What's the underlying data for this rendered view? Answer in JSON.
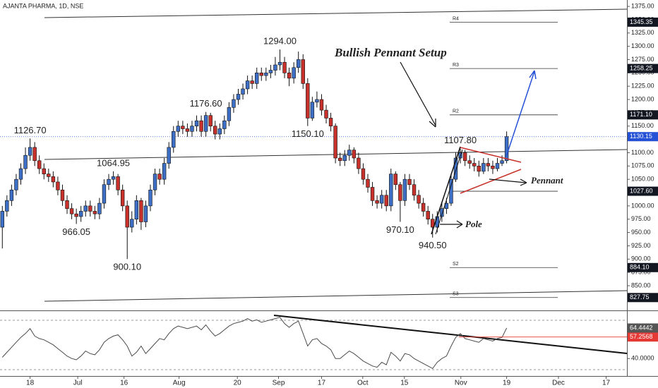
{
  "chart_data": {
    "type": "candlestick",
    "title": "AJANTA PHARMA, 1D, NSE",
    "open": [
      960,
      990,
      1010,
      1030,
      1050,
      1070,
      1095,
      1110,
      1085,
      1070,
      1060,
      1055,
      1045,
      1030,
      1010,
      995,
      985,
      980,
      990,
      1000,
      990,
      985,
      1005,
      1040,
      1050,
      1055,
      1030,
      1000,
      960,
      975,
      1010,
      970,
      1000,
      1030,
      1060,
      1050,
      1080,
      1110,
      1140,
      1150,
      1145,
      1140,
      1150,
      1160,
      1140,
      1170,
      1150,
      1135,
      1145,
      1160,
      1185,
      1200,
      1210,
      1220,
      1235,
      1230,
      1250,
      1245,
      1250,
      1255,
      1265,
      1270,
      1250,
      1240,
      1260,
      1275,
      1230,
      1165,
      1195,
      1200,
      1180,
      1165,
      1150,
      1090,
      1085,
      1095,
      1105,
      1090,
      1070,
      1050,
      1035,
      1010,
      1005,
      1020,
      1000,
      1060,
      1040,
      1010,
      1050,
      1040,
      1020,
      1005,
      990,
      975,
      960,
      980,
      995,
      1005,
      1050,
      1090,
      1100,
      1085,
      1080,
      1075,
      1065,
      1080,
      1075,
      1070,
      1080,
      1085
    ],
    "high": [
      1000,
      1020,
      1040,
      1060,
      1080,
      1110,
      1126.7,
      1120,
      1095,
      1080,
      1070,
      1065,
      1055,
      1040,
      1020,
      1005,
      995,
      1000,
      1010,
      1010,
      1000,
      1015,
      1050,
      1060,
      1064.95,
      1060,
      1040,
      1010,
      990,
      1020,
      1015,
      1010,
      1040,
      1070,
      1070,
      1090,
      1120,
      1150,
      1160,
      1160,
      1155,
      1160,
      1170,
      1170,
      1176.6,
      1175,
      1160,
      1155,
      1170,
      1195,
      1210,
      1220,
      1230,
      1245,
      1245,
      1260,
      1260,
      1260,
      1265,
      1280,
      1294,
      1280,
      1260,
      1270,
      1290,
      1285,
      1240,
      1205,
      1215,
      1210,
      1190,
      1175,
      1155,
      1100,
      1105,
      1115,
      1110,
      1100,
      1080,
      1060,
      1045,
      1020,
      1030,
      1030,
      1070,
      1065,
      1045,
      1060,
      1060,
      1050,
      1030,
      1015,
      1000,
      985,
      990,
      1005,
      1015,
      1060,
      1100,
      1107.8,
      1105,
      1095,
      1090,
      1085,
      1090,
      1090,
      1085,
      1090,
      1095,
      1140
    ],
    "low": [
      920,
      980,
      1000,
      1020,
      1040,
      1060,
      1085,
      1075,
      1060,
      1050,
      1045,
      1035,
      1020,
      1000,
      985,
      975,
      966.05,
      970,
      980,
      980,
      975,
      975,
      995,
      1030,
      1040,
      1020,
      990,
      900.1,
      950,
      965,
      955,
      960,
      990,
      1020,
      1040,
      1040,
      1070,
      1100,
      1130,
      1135,
      1130,
      1130,
      1140,
      1130,
      1130,
      1140,
      1125,
      1125,
      1135,
      1150,
      1175,
      1190,
      1200,
      1210,
      1220,
      1220,
      1235,
      1235,
      1240,
      1245,
      1255,
      1240,
      1225,
      1230,
      1250,
      1220,
      1150.1,
      1160,
      1185,
      1170,
      1155,
      1140,
      1080,
      1075,
      1075,
      1085,
      1080,
      1060,
      1040,
      1025,
      1000,
      995,
      995,
      990,
      990,
      1030,
      970.1,
      1000,
      1030,
      1010,
      995,
      980,
      965,
      940.5,
      950,
      970,
      985,
      1000,
      1045,
      1080,
      1075,
      1070,
      1065,
      1055,
      1060,
      1065,
      1060,
      1065,
      1075,
      1080
    ],
    "close": [
      990,
      1010,
      1030,
      1050,
      1070,
      1095,
      1110,
      1085,
      1070,
      1060,
      1055,
      1045,
      1030,
      1010,
      995,
      985,
      980,
      990,
      1000,
      990,
      985,
      1005,
      1040,
      1050,
      1055,
      1030,
      1000,
      960,
      975,
      1010,
      970,
      1000,
      1030,
      1060,
      1050,
      1080,
      1110,
      1140,
      1150,
      1145,
      1140,
      1150,
      1160,
      1140,
      1170,
      1150,
      1135,
      1145,
      1160,
      1185,
      1200,
      1210,
      1220,
      1235,
      1230,
      1250,
      1245,
      1250,
      1255,
      1265,
      1270,
      1250,
      1240,
      1260,
      1275,
      1230,
      1165,
      1195,
      1200,
      1180,
      1165,
      1150,
      1090,
      1085,
      1095,
      1105,
      1090,
      1070,
      1050,
      1035,
      1010,
      1005,
      1020,
      1000,
      1060,
      1040,
      1010,
      1050,
      1040,
      1020,
      1005,
      990,
      975,
      960,
      980,
      995,
      1005,
      1050,
      1090,
      1100,
      1085,
      1080,
      1075,
      1065,
      1080,
      1075,
      1070,
      1080,
      1085,
      1130.15
    ],
    "up_color": "#3d6fc7",
    "down_color": "#c8312b",
    "xlim": [
      -0.5,
      135
    ],
    "xticks": [
      {
        "value": 6,
        "label": "18"
      },
      {
        "value": 16.3,
        "label": "Jul"
      },
      {
        "value": 26.3,
        "label": "16"
      },
      {
        "value": 38.2,
        "label": "Aug"
      },
      {
        "value": 50.8,
        "label": "20"
      },
      {
        "value": 59.7,
        "label": "Sep"
      },
      {
        "value": 69,
        "label": "17"
      },
      {
        "value": 77.9,
        "label": "Oct"
      },
      {
        "value": 86.9,
        "label": "15"
      },
      {
        "value": 99.1,
        "label": "Nov"
      },
      {
        "value": 109,
        "label": "19"
      },
      {
        "value": 120.2,
        "label": "Dec"
      },
      {
        "value": 130.5,
        "label": "17"
      }
    ],
    "ylim": [
      803.6,
      1387
    ],
    "yticks": [
      {
        "value": 825,
        "label": "825.00"
      },
      {
        "value": 850,
        "label": "850.00"
      },
      {
        "value": 875,
        "label": "875.00"
      },
      {
        "value": 900,
        "label": "900.00"
      },
      {
        "value": 925,
        "label": "925.00"
      },
      {
        "value": 950,
        "label": "950.00"
      },
      {
        "value": 975,
        "label": "975.00"
      },
      {
        "value": 1000,
        "label": "1000.00"
      },
      {
        "value": 1025,
        "label": "1025.00"
      },
      {
        "value": 1050,
        "label": "1050.00"
      },
      {
        "value": 1075,
        "label": "1075.00"
      },
      {
        "value": 1100,
        "label": "1100.00"
      },
      {
        "value": 1125,
        "label": "1125.00"
      },
      {
        "value": 1150,
        "label": "1150.00"
      },
      {
        "value": 1175,
        "label": "1175.00"
      },
      {
        "value": 1200,
        "label": "1200.00"
      },
      {
        "value": 1225,
        "label": "1225.00"
      },
      {
        "value": 1250,
        "label": "1250.00"
      },
      {
        "value": 1275,
        "label": "1275.00"
      },
      {
        "value": 1300,
        "label": "1300.00"
      },
      {
        "value": 1325,
        "label": "1325.00"
      },
      {
        "value": 1350,
        "label": "1350.00"
      },
      {
        "value": 1375,
        "label": "1375.00"
      }
    ],
    "peaks": [
      {
        "candle": 6,
        "value": 1126.7,
        "label": "1126.70",
        "side": "above"
      },
      {
        "candle": 16,
        "value": 966.05,
        "side": "below"
      },
      {
        "candle": 24,
        "value": 1064.95,
        "side": "above"
      },
      {
        "candle": 27,
        "value": 900.1,
        "label": "900.10",
        "side": "below"
      },
      {
        "candle": 44,
        "value": 1176.6,
        "label": "1176.60",
        "side": "above"
      },
      {
        "candle": 60,
        "value": 1294,
        "label": "1294.00",
        "side": "above"
      },
      {
        "candle": 66,
        "value": 1150.1,
        "label": "1150.10",
        "side": "below"
      },
      {
        "candle": 86,
        "value": 970.1,
        "label": "970.10",
        "side": "below"
      },
      {
        "candle": 93,
        "value": 940.5,
        "label": "940.50",
        "side": "below"
      },
      {
        "candle": 99,
        "value": 1107.8,
        "label": "1107.80",
        "side": "above"
      }
    ],
    "levels": [
      {
        "name": "R4",
        "value": 1345.35
      },
      {
        "name": "R3",
        "value": 1258.25
      },
      {
        "name": "R2",
        "value": 1171.1,
        "label": "1171.10"
      },
      {
        "value": 1027.6,
        "label": "1027.60"
      },
      {
        "name": "S2",
        "value": 884.1,
        "label": "884.10"
      },
      {
        "name": "S3",
        "value": 827.75
      }
    ],
    "level_color": "#131722",
    "last_color": "#2451d6",
    "annotations": [
      "Bullish Pennant Setup",
      "Pennant",
      "Pole"
    ],
    "rsi": {
      "values": [
        41,
        45,
        49,
        53,
        57,
        60,
        64,
        58,
        56,
        55,
        53,
        51,
        48,
        45,
        42,
        40,
        39,
        42,
        46,
        44,
        43,
        47,
        53,
        56,
        58,
        59,
        55,
        50,
        42,
        45,
        50,
        44,
        48,
        52,
        56,
        55,
        60,
        64,
        66,
        65,
        64,
        65,
        66,
        63,
        67,
        62,
        58,
        60,
        63,
        66,
        68,
        69,
        70,
        72,
        70,
        71,
        69,
        70,
        71,
        72,
        73,
        68,
        65,
        68,
        70,
        60,
        50,
        55,
        56,
        52,
        50,
        47,
        40,
        40,
        43,
        46,
        44,
        41,
        38,
        36,
        34,
        33,
        37,
        35,
        45,
        42,
        38,
        44,
        43,
        40,
        38,
        36,
        34,
        32,
        37,
        40,
        42,
        50,
        57,
        60,
        56,
        55,
        54,
        53,
        56,
        55,
        54,
        56,
        57,
        64.4442
      ],
      "color": "#4a4a4a",
      "tag_color": "#555555",
      "ylim": [
        26,
        78
      ],
      "yticks": [
        {
          "value": 40,
          "label": "40.0000"
        }
      ],
      "ma": 57.2568,
      "ma_color": "#e53935"
    }
  }
}
